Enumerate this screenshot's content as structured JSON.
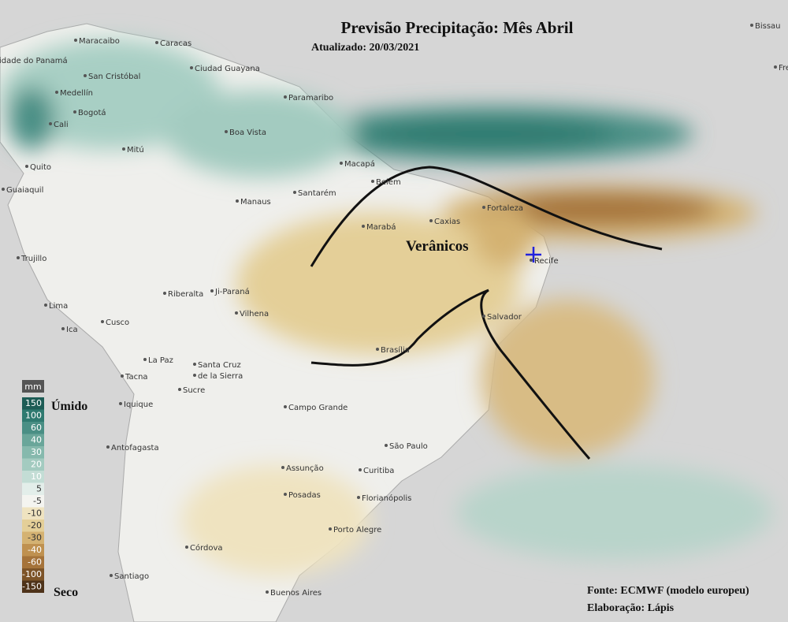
{
  "header": {
    "title": "Previsão Precipitação: Mês Abril",
    "subtitle": "Atualizado: 20/03/2021"
  },
  "annotation": "Verânicos",
  "cities": [
    "Cidade do Panamá",
    "Maracaibo",
    "Caracas",
    "San Cristóbal",
    "Ciudad Guayana",
    "Paramaribo",
    "Medellín",
    "Bogotá",
    "Cali",
    "Boa Vista",
    "Mitú",
    "Macapá",
    "Belém",
    "Quito",
    "Guaiaquil",
    "Santarém",
    "Manaus",
    "Fortaleza",
    "Caxias",
    "Marabá",
    "Recife",
    "Trujillo",
    "Riberalta",
    "Ji-Paraná",
    "Lima",
    "Vilhena",
    "Salvador",
    "Cusco",
    "Ica",
    "Brasília",
    "La Paz",
    "Santa Cruz",
    "de la Sierra",
    "Tacna",
    "Sucre",
    "Iquique",
    "Campo Grande",
    "Antofagasta",
    "São Paulo",
    "Curitiba",
    "Assunção",
    "Posadas",
    "Florianópolis",
    "Porto Alegre",
    "Córdova",
    "Santiago",
    "Buenos Aires",
    "Bissau",
    "Fre"
  ],
  "legend": {
    "unit": "mm",
    "wet_label": "Úmido",
    "dry_label": "Seco",
    "entries": [
      {
        "label": 150,
        "color": "#1d5c55"
      },
      {
        "label": 100,
        "color": "#2f7a70"
      },
      {
        "label": 60,
        "color": "#4a8f85"
      },
      {
        "label": 40,
        "color": "#6aa69a"
      },
      {
        "label": 30,
        "color": "#86b9ad"
      },
      {
        "label": 20,
        "color": "#a3cbc0"
      },
      {
        "label": 10,
        "color": "#c3ddd5"
      },
      {
        "label": 5,
        "color": "#e3eeea"
      },
      {
        "label": -5,
        "color": "#f4f4f0"
      },
      {
        "label": -10,
        "color": "#efe3c0"
      },
      {
        "label": -20,
        "color": "#e4cf98"
      },
      {
        "label": -30,
        "color": "#d4b272"
      },
      {
        "label": -40,
        "color": "#bf9150"
      },
      {
        "label": -60,
        "color": "#a5733a"
      },
      {
        "label": -100,
        "color": "#7d5428"
      },
      {
        "label": -150,
        "color": "#4e331a"
      }
    ]
  },
  "footer": {
    "source": "Fonte: ECMWF (modelo europeu)",
    "author": "Elaboração: Lápis"
  }
}
